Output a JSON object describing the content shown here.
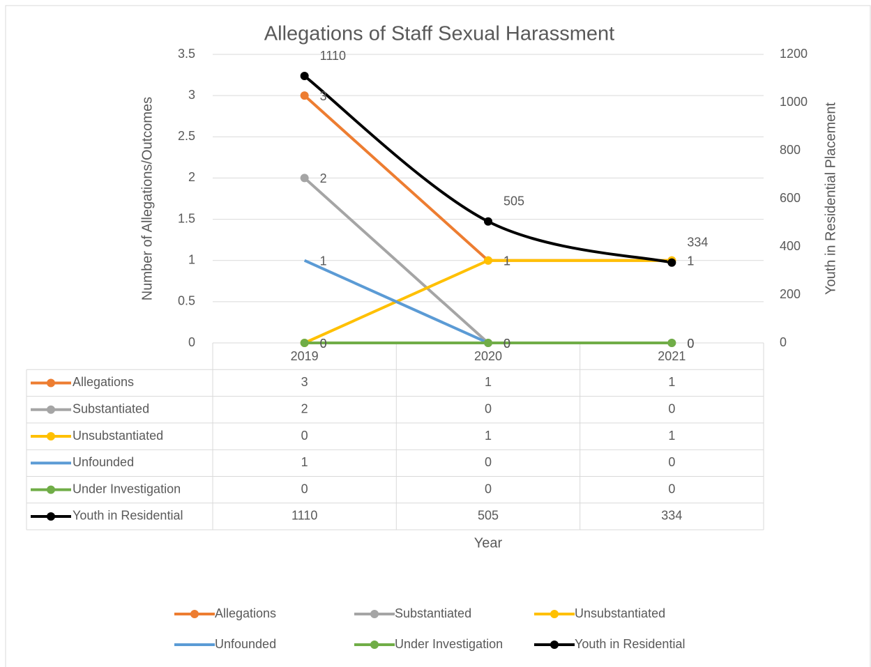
{
  "chart_data": {
    "type": "line",
    "title": "Allegations of Staff Sexual Harassment",
    "x_label": "Year",
    "y_label": "Number of Allegations/Outcomes",
    "y2_label": "Youth in Residential Placement",
    "categories": [
      "2019",
      "2020",
      "2021"
    ],
    "series": [
      {
        "name": "Allegations",
        "color": "#ED7D31",
        "markers": true,
        "values": [
          3,
          1,
          1
        ]
      },
      {
        "name": "Substantiated",
        "color": "#A5A5A5",
        "markers": true,
        "values": [
          2,
          0,
          0
        ]
      },
      {
        "name": "Unsubstantiated",
        "color": "#FFC000",
        "markers": true,
        "values": [
          0,
          1,
          1
        ]
      },
      {
        "name": "Unfounded",
        "color": "#5B9BD5",
        "markers": false,
        "values": [
          1,
          0,
          0
        ]
      },
      {
        "name": "Under Investigation",
        "color": "#70AD47",
        "markers": true,
        "values": [
          0,
          0,
          0
        ]
      },
      {
        "name": "Youth in Residential",
        "color": "#000000",
        "markers": true,
        "smooth": true,
        "axis": "y2",
        "values": [
          1110,
          505,
          334
        ]
      }
    ],
    "ylim": [
      0,
      3.5
    ],
    "yticks": [
      0,
      0.5,
      1,
      1.5,
      2,
      2.5,
      3,
      3.5
    ],
    "y2lim": [
      0,
      1200
    ],
    "y2ticks": [
      0,
      200,
      400,
      600,
      800,
      1000,
      1200
    ],
    "grid": true,
    "data_labels": true,
    "data_table": true,
    "legend": "bottom"
  }
}
